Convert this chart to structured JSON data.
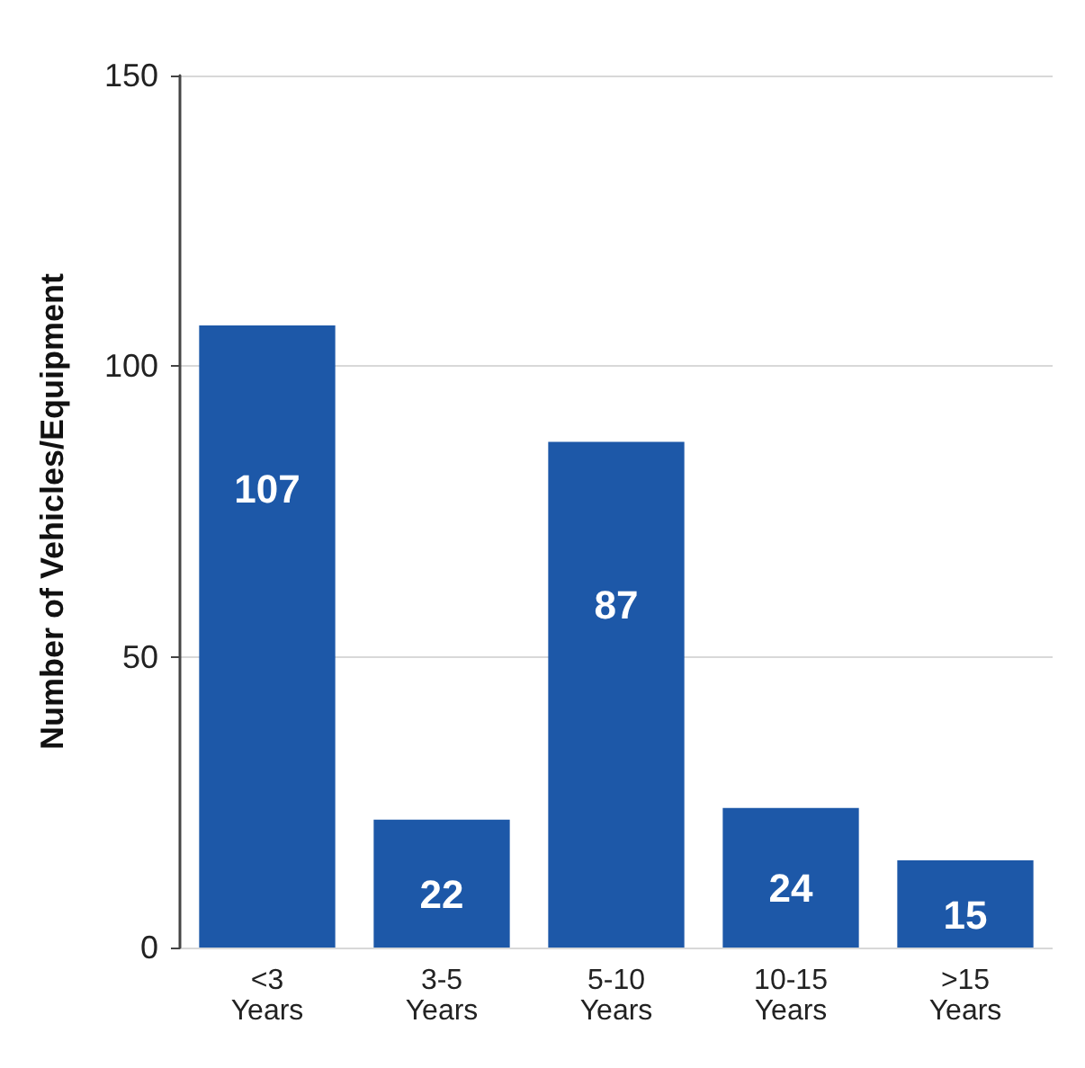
{
  "chart_data": {
    "type": "bar",
    "ylabel": "Number of Vehicles/Equipment",
    "categories": [
      "<3\nYears",
      "3-5\nYears",
      "5-10\nYears",
      "10-15\nYears",
      ">15\nYears"
    ],
    "values": [
      107,
      22,
      87,
      24,
      15
    ],
    "color": "#1d58a8",
    "ylim": [
      0,
      150
    ],
    "yticks": [
      0,
      50,
      100,
      150
    ],
    "grid": "y",
    "data_labels": true
  }
}
